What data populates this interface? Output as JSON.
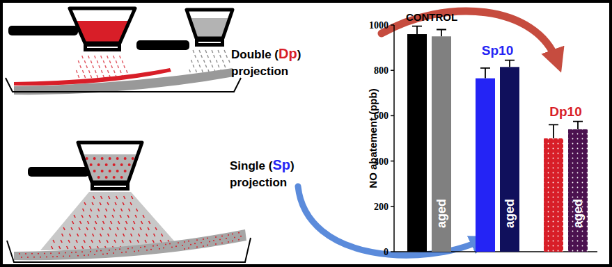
{
  "chart_data": {
    "type": "bar",
    "categories": [
      "CONTROL",
      "Sp10",
      "Dp10"
    ],
    "series": [
      {
        "colors": [
          "#000000",
          "#2424f5",
          "#d81e28"
        ],
        "values": [
          960,
          765,
          500
        ],
        "errors": [
          35,
          45,
          60
        ]
      },
      {
        "name": "aged",
        "colors": [
          "#808080",
          "#10105c",
          "#4b124f"
        ],
        "values": [
          950,
          815,
          540
        ],
        "errors": [
          30,
          30,
          35
        ]
      }
    ],
    "ylabel": "NO abatement (ppb)",
    "ylim": [
      0,
      1000
    ],
    "yticks": [
      0,
      200,
      400,
      600,
      800,
      1000
    ],
    "tick_labels": "y",
    "grid": false
  },
  "diagram": {
    "double": {
      "parts": [
        "Double (",
        "Dp",
        ")"
      ],
      "line2": "projection"
    },
    "single": {
      "parts": [
        "Single (",
        "Sp",
        ")"
      ],
      "line2": "projection"
    }
  }
}
